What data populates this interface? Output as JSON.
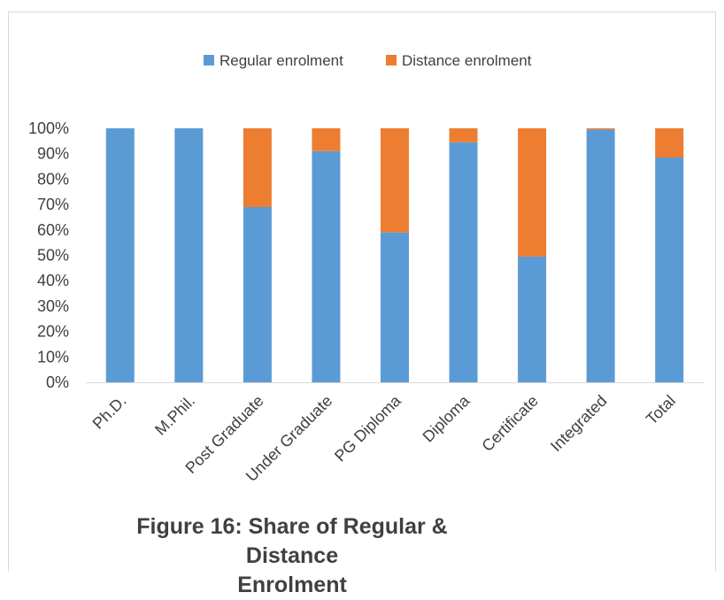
{
  "chart_data": {
    "type": "bar",
    "stacked": true,
    "percent": true,
    "categories": [
      "Ph.D.",
      "M.Phil.",
      "Post Graduate",
      "Under Graduate",
      "PG Diploma",
      "Diploma",
      "Certificate",
      "Integrated",
      "Total"
    ],
    "series": [
      {
        "name": "Regular enrolment",
        "color": "#5b9bd5",
        "values": [
          100,
          100,
          69,
          91,
          59,
          94.5,
          49.5,
          99.5,
          88.5
        ]
      },
      {
        "name": "Distance enrolment",
        "color": "#ed7d31",
        "values": [
          0,
          0,
          31,
          9,
          41,
          5.5,
          50.5,
          0.5,
          11.5
        ]
      }
    ],
    "y_ticks": [
      "0%",
      "10%",
      "20%",
      "30%",
      "40%",
      "50%",
      "60%",
      "70%",
      "80%",
      "90%",
      "100%"
    ],
    "ylim": [
      0,
      100
    ],
    "legend_position": "top",
    "grid": false
  },
  "caption": {
    "line1": "Figure 16: Share of Regular & Distance",
    "line2": "Enrolment"
  }
}
